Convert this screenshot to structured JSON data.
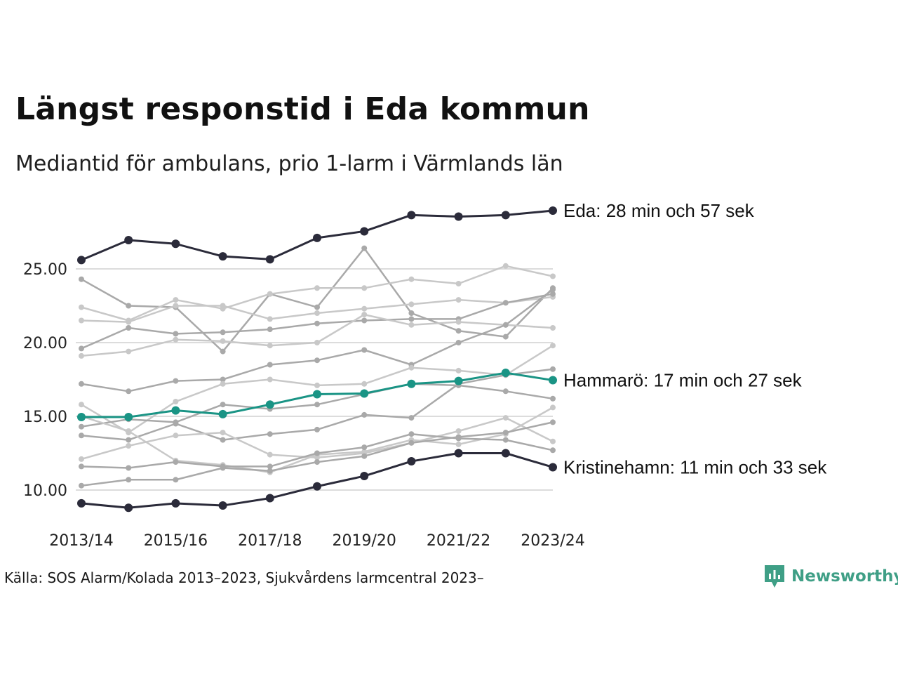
{
  "title": "Längst responstid i Eda kommun",
  "subtitle": "Mediantid för ambulans, prio 1-larm i Värmlands län",
  "source": "Källa: SOS Alarm/Kolada 2013–2023, Sjukvårdens larmcentral 2023–",
  "brand": {
    "name": "Newsworthy",
    "color": "#3f9f86",
    "icon": "newsworthy-logo-icon"
  },
  "colors": {
    "highlight_dark": "#2b2b3a",
    "highlight_teal": "#1a9485",
    "background_series": [
      "#a9a9a9",
      "#c8c8c8"
    ],
    "grid": "#dcdcdc"
  },
  "chart_data": {
    "type": "line",
    "x": [
      "2013/14",
      "2014/15",
      "2015/16",
      "2016/17",
      "2017/18",
      "2018/19",
      "2019/20",
      "2020/21",
      "2021/22",
      "2022/23",
      "2023/24"
    ],
    "xticks": [
      "2013/14",
      "2015/16",
      "2017/18",
      "2019/20",
      "2021/22",
      "2023/24"
    ],
    "yticks": [
      "10.00",
      "15.00",
      "20.00",
      "25.00"
    ],
    "ytick_values": [
      10,
      15,
      20,
      25
    ],
    "ylim": [
      8.3,
      29.8
    ],
    "grid": true,
    "highlighted": [
      {
        "label": "Eda: 28 min och 57 sek",
        "color": "#2b2b3a",
        "values": [
          25.6,
          26.95,
          26.7,
          25.85,
          25.65,
          27.1,
          27.55,
          28.65,
          28.55,
          28.65,
          28.95
        ]
      },
      {
        "label": "Hammarö: 17 min och 27 sek",
        "color": "#1a9485",
        "values": [
          14.95,
          14.95,
          15.4,
          15.15,
          15.8,
          16.5,
          16.55,
          17.2,
          17.4,
          17.95,
          17.45
        ]
      },
      {
        "label": "Kristinehamn: 11 min och 33 sek",
        "color": "#2b2b3a",
        "values": [
          9.1,
          8.8,
          9.1,
          8.95,
          9.45,
          10.25,
          10.95,
          11.95,
          12.5,
          12.5,
          11.55
        ]
      }
    ],
    "background": [
      {
        "values": [
          24.3,
          22.5,
          22.4,
          19.4,
          23.3,
          22.4,
          26.4,
          22.0,
          20.8,
          20.4,
          23.7
        ],
        "color": "#a9a9a9"
      },
      {
        "values": [
          22.4,
          21.5,
          22.9,
          22.3,
          23.3,
          23.7,
          23.7,
          24.3,
          24.0,
          25.2,
          24.5
        ],
        "color": "#c8c8c8"
      },
      {
        "values": [
          21.5,
          21.4,
          22.5,
          22.5,
          21.6,
          22.0,
          22.3,
          22.6,
          22.9,
          22.7,
          23.1
        ],
        "color": "#c8c8c8"
      },
      {
        "values": [
          19.6,
          21.0,
          20.6,
          20.7,
          20.9,
          21.3,
          21.5,
          21.6,
          21.6,
          22.7,
          23.3
        ],
        "color": "#a9a9a9"
      },
      {
        "values": [
          19.1,
          19.4,
          20.2,
          20.1,
          19.8,
          20.0,
          21.9,
          21.2,
          21.4,
          21.2,
          21.0
        ],
        "color": "#c8c8c8"
      },
      {
        "values": [
          17.2,
          16.7,
          17.4,
          17.5,
          18.5,
          18.8,
          19.5,
          18.5,
          20.0,
          21.2,
          23.6
        ],
        "color": "#a9a9a9"
      },
      {
        "values": [
          15.8,
          13.9,
          16.0,
          17.2,
          17.5,
          17.1,
          17.2,
          18.3,
          18.1,
          17.8,
          19.8
        ],
        "color": "#c8c8c8"
      },
      {
        "values": [
          14.3,
          14.8,
          14.6,
          15.8,
          15.5,
          15.8,
          16.5,
          17.2,
          17.1,
          16.7,
          16.2
        ],
        "color": "#a9a9a9"
      },
      {
        "values": [
          13.7,
          13.4,
          14.5,
          13.4,
          13.8,
          14.1,
          15.1,
          14.9,
          17.2,
          17.8,
          18.2
        ],
        "color": "#a9a9a9"
      },
      {
        "values": [
          12.1,
          13.0,
          13.7,
          13.9,
          12.4,
          12.2,
          12.5,
          13.2,
          14.0,
          14.9,
          13.3
        ],
        "color": "#c8c8c8"
      },
      {
        "values": [
          15.0,
          14.0,
          12.0,
          11.7,
          11.2,
          12.4,
          12.6,
          13.4,
          13.1,
          13.8,
          15.6
        ],
        "color": "#c8c8c8"
      },
      {
        "values": [
          11.6,
          11.5,
          11.9,
          11.6,
          11.6,
          12.5,
          12.9,
          13.8,
          13.5,
          13.4,
          12.7
        ],
        "color": "#a9a9a9"
      },
      {
        "values": [
          10.3,
          10.7,
          10.7,
          11.5,
          11.3,
          11.9,
          12.3,
          13.2,
          13.6,
          13.9,
          14.6
        ],
        "color": "#a9a9a9"
      }
    ]
  }
}
